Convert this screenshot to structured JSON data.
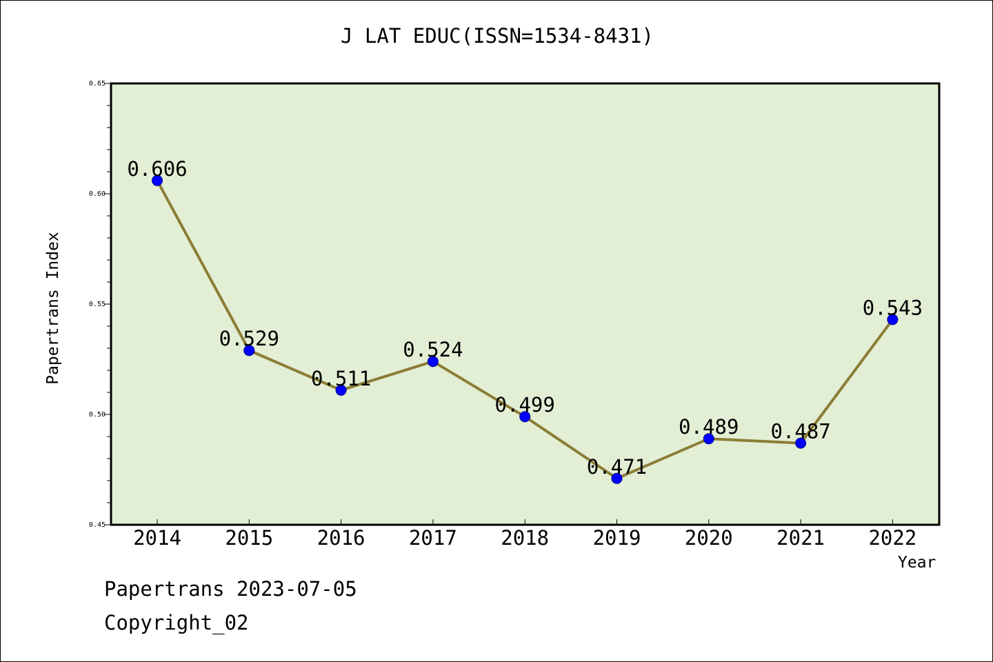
{
  "chart_data": {
    "type": "line",
    "title": "J LAT EDUC(ISSN=1534-8431)",
    "xlabel": "Year",
    "ylabel": "Papertrans Index",
    "categories": [
      "2014",
      "2015",
      "2016",
      "2017",
      "2018",
      "2019",
      "2020",
      "2021",
      "2022"
    ],
    "series": [
      {
        "values": [
          0.606,
          0.529,
          0.511,
          0.524,
          0.499,
          0.471,
          0.489,
          0.487,
          0.543
        ],
        "data_labels": [
          "0.606",
          "0.529",
          "0.511",
          "0.524",
          "0.499",
          "0.471",
          "0.489",
          "0.487",
          "0.543"
        ],
        "line_color": "#8b7d35",
        "marker_color": "#0000ff"
      }
    ],
    "ylim": [
      0.45,
      0.65
    ],
    "y_ticks": [
      "0.45",
      "0.50",
      "0.55",
      "0.60",
      "0.65"
    ],
    "plot_background": "#e2efd5",
    "grid": false,
    "legend": "none"
  },
  "footer": {
    "date_line": "Papertrans 2023-07-05",
    "copyright": "Copyright_02"
  }
}
